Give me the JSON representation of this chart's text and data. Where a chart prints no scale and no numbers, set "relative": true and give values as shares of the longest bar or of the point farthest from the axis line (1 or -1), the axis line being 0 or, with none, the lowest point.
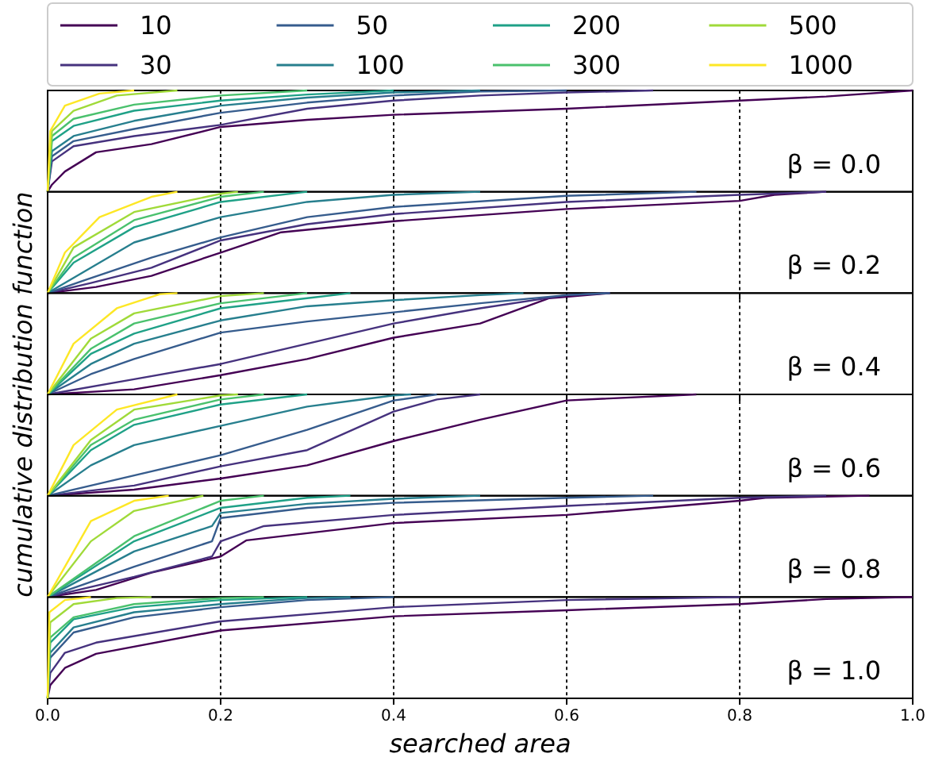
{
  "chart_data": [
    {
      "type": "line",
      "relative": true,
      "xlim": [
        0,
        1
      ],
      "xticks": [
        0,
        0.2,
        0.4,
        0.6,
        0.8,
        1
      ],
      "tick_labels": false,
      "grid": "x",
      "legend": "top",
      "annotations": [
        "β = 0.0"
      ],
      "series": [
        {
          "name": "10",
          "color": "#440154",
          "x": [
            0,
            0.005,
            0.02,
            0.056,
            0.12,
            0.2,
            0.3,
            0.4,
            0.6,
            0.8,
            0.9,
            1.0
          ],
          "values": [
            0,
            0.07,
            0.2,
            0.39,
            0.47,
            0.64,
            0.71,
            0.76,
            0.82,
            0.9,
            0.94,
            1.0
          ]
        },
        {
          "name": "30",
          "color": "#46327e",
          "x": [
            0,
            0.005,
            0.03,
            0.1,
            0.2,
            0.3,
            0.4,
            0.5,
            0.6,
            0.7
          ],
          "values": [
            0,
            0.3,
            0.45,
            0.55,
            0.66,
            0.82,
            0.9,
            0.95,
            0.98,
            1.0
          ]
        },
        {
          "name": "50",
          "color": "#365c8d",
          "x": [
            0,
            0.005,
            0.03,
            0.1,
            0.2,
            0.3,
            0.4,
            0.5,
            0.6
          ],
          "values": [
            0,
            0.35,
            0.5,
            0.62,
            0.78,
            0.88,
            0.95,
            0.99,
            1.0
          ]
        },
        {
          "name": "100",
          "color": "#277f8e",
          "x": [
            0,
            0.005,
            0.03,
            0.1,
            0.2,
            0.3,
            0.4,
            0.5
          ],
          "values": [
            0,
            0.4,
            0.55,
            0.7,
            0.85,
            0.93,
            0.98,
            1.0
          ]
        },
        {
          "name": "200",
          "color": "#1fa187",
          "x": [
            0,
            0.005,
            0.03,
            0.1,
            0.2,
            0.3,
            0.4
          ],
          "values": [
            0,
            0.5,
            0.65,
            0.8,
            0.9,
            0.96,
            1.0
          ]
        },
        {
          "name": "300",
          "color": "#4ac16d",
          "x": [
            0,
            0.005,
            0.03,
            0.1,
            0.2,
            0.3
          ],
          "values": [
            0,
            0.55,
            0.72,
            0.86,
            0.95,
            1.0
          ]
        },
        {
          "name": "500",
          "color": "#a0da39",
          "x": [
            0,
            0.005,
            0.03,
            0.08,
            0.15
          ],
          "values": [
            0,
            0.6,
            0.8,
            0.95,
            1.0
          ]
        },
        {
          "name": "1000",
          "color": "#fde725",
          "x": [
            0,
            0.003,
            0.02,
            0.06,
            0.1
          ],
          "values": [
            0,
            0.6,
            0.85,
            0.97,
            1.0
          ]
        }
      ]
    },
    {
      "type": "line",
      "relative": true,
      "xlim": [
        0,
        1
      ],
      "xticks": [
        0,
        0.2,
        0.4,
        0.6,
        0.8,
        1
      ],
      "tick_labels": false,
      "grid": "x",
      "annotations": [
        "β = 0.2"
      ],
      "series": [
        {
          "color": "#440154",
          "x": [
            0,
            0.056,
            0.12,
            0.2,
            0.27,
            0.4,
            0.6,
            0.8,
            0.84,
            0.9
          ],
          "values": [
            0,
            0.06,
            0.17,
            0.4,
            0.6,
            0.71,
            0.83,
            0.91,
            0.97,
            1.0
          ]
        },
        {
          "color": "#46327e",
          "x": [
            0,
            0.05,
            0.12,
            0.2,
            0.3,
            0.4,
            0.6,
            0.8,
            0.9
          ],
          "values": [
            0,
            0.1,
            0.25,
            0.52,
            0.68,
            0.78,
            0.9,
            0.97,
            1.0
          ]
        },
        {
          "color": "#365c8d",
          "x": [
            0,
            0.04,
            0.12,
            0.2,
            0.3,
            0.4,
            0.6,
            0.75
          ],
          "values": [
            0,
            0.12,
            0.35,
            0.55,
            0.75,
            0.85,
            0.96,
            1.0
          ]
        },
        {
          "color": "#277f8e",
          "x": [
            0,
            0.04,
            0.1,
            0.2,
            0.3,
            0.4,
            0.5
          ],
          "values": [
            0,
            0.2,
            0.5,
            0.75,
            0.9,
            0.97,
            1.0
          ]
        },
        {
          "color": "#1fa187",
          "x": [
            0,
            0.03,
            0.1,
            0.2,
            0.3
          ],
          "values": [
            0,
            0.3,
            0.65,
            0.9,
            1.0
          ]
        },
        {
          "color": "#4ac16d",
          "x": [
            0,
            0.03,
            0.1,
            0.2,
            0.25
          ],
          "values": [
            0,
            0.35,
            0.72,
            0.95,
            1.0
          ]
        },
        {
          "color": "#a0da39",
          "x": [
            0,
            0.03,
            0.1,
            0.2,
            0.22
          ],
          "values": [
            0,
            0.45,
            0.8,
            0.98,
            1.0
          ]
        },
        {
          "color": "#fde725",
          "x": [
            0,
            0.02,
            0.06,
            0.12,
            0.15
          ],
          "values": [
            0,
            0.4,
            0.75,
            0.95,
            1.0
          ]
        }
      ]
    },
    {
      "type": "line",
      "relative": true,
      "xlim": [
        0,
        1
      ],
      "xticks": [
        0,
        0.2,
        0.4,
        0.6,
        0.8,
        1
      ],
      "tick_labels": false,
      "grid": "x",
      "ylabel": "cumulative distribution function",
      "annotations": [
        "β = 0.4"
      ],
      "series": [
        {
          "color": "#440154",
          "x": [
            0,
            0.1,
            0.2,
            0.3,
            0.4,
            0.5,
            0.58,
            0.65
          ],
          "values": [
            0,
            0.05,
            0.19,
            0.35,
            0.56,
            0.7,
            0.95,
            1.0
          ]
        },
        {
          "color": "#46327e",
          "x": [
            0,
            0.1,
            0.2,
            0.3,
            0.4,
            0.5,
            0.6,
            0.65
          ],
          "values": [
            0,
            0.15,
            0.3,
            0.5,
            0.7,
            0.85,
            0.98,
            1.0
          ]
        },
        {
          "color": "#365c8d",
          "x": [
            0,
            0.05,
            0.1,
            0.2,
            0.3,
            0.4,
            0.5,
            0.6,
            0.65
          ],
          "values": [
            0,
            0.2,
            0.35,
            0.61,
            0.72,
            0.81,
            0.9,
            0.98,
            1.0
          ]
        },
        {
          "color": "#277f8e",
          "x": [
            0,
            0.05,
            0.1,
            0.2,
            0.3,
            0.4,
            0.5,
            0.55
          ],
          "values": [
            0,
            0.3,
            0.5,
            0.73,
            0.87,
            0.93,
            0.98,
            1.0
          ]
        },
        {
          "color": "#1fa187",
          "x": [
            0,
            0.05,
            0.1,
            0.2,
            0.3,
            0.35
          ],
          "values": [
            0,
            0.4,
            0.6,
            0.85,
            0.95,
            1.0
          ]
        },
        {
          "color": "#4ac16d",
          "x": [
            0,
            0.05,
            0.1,
            0.2,
            0.3
          ],
          "values": [
            0,
            0.45,
            0.7,
            0.9,
            1.0
          ]
        },
        {
          "color": "#a0da39",
          "x": [
            0,
            0.05,
            0.1,
            0.2,
            0.25
          ],
          "values": [
            0,
            0.55,
            0.8,
            0.97,
            1.0
          ]
        },
        {
          "color": "#fde725",
          "x": [
            0,
            0.03,
            0.08,
            0.13,
            0.15
          ],
          "values": [
            0,
            0.5,
            0.85,
            0.99,
            1.0
          ]
        }
      ]
    },
    {
      "type": "line",
      "relative": true,
      "xlim": [
        0,
        1
      ],
      "xticks": [
        0,
        0.2,
        0.4,
        0.6,
        0.8,
        1
      ],
      "tick_labels": false,
      "grid": "x",
      "annotations": [
        "β = 0.6"
      ],
      "series": [
        {
          "color": "#440154",
          "x": [
            0,
            0.1,
            0.2,
            0.3,
            0.4,
            0.5,
            0.6,
            0.75
          ],
          "values": [
            0,
            0.06,
            0.17,
            0.3,
            0.54,
            0.75,
            0.94,
            1.0
          ]
        },
        {
          "color": "#46327e",
          "x": [
            0,
            0.1,
            0.2,
            0.3,
            0.4,
            0.45,
            0.5
          ],
          "values": [
            0,
            0.1,
            0.29,
            0.45,
            0.83,
            0.95,
            1.0
          ]
        },
        {
          "color": "#365c8d",
          "x": [
            0,
            0.1,
            0.2,
            0.3,
            0.4,
            0.45
          ],
          "values": [
            0,
            0.2,
            0.4,
            0.65,
            0.94,
            1.0
          ]
        },
        {
          "color": "#277f8e",
          "x": [
            0,
            0.05,
            0.1,
            0.2,
            0.3,
            0.4,
            0.42
          ],
          "values": [
            0,
            0.3,
            0.5,
            0.69,
            0.88,
            0.99,
            1.0
          ]
        },
        {
          "color": "#1fa187",
          "x": [
            0,
            0.05,
            0.1,
            0.2,
            0.3
          ],
          "values": [
            0,
            0.45,
            0.7,
            0.9,
            1.0
          ]
        },
        {
          "color": "#4ac16d",
          "x": [
            0,
            0.05,
            0.1,
            0.2,
            0.25
          ],
          "values": [
            0,
            0.5,
            0.75,
            0.95,
            1.0
          ]
        },
        {
          "color": "#a0da39",
          "x": [
            0,
            0.05,
            0.1,
            0.2,
            0.22
          ],
          "values": [
            0,
            0.55,
            0.85,
            0.99,
            1.0
          ]
        },
        {
          "color": "#fde725",
          "x": [
            0,
            0.03,
            0.08,
            0.15
          ],
          "values": [
            0,
            0.5,
            0.85,
            1.0
          ]
        }
      ]
    },
    {
      "type": "line",
      "relative": true,
      "xlim": [
        0,
        1
      ],
      "xticks": [
        0,
        0.2,
        0.4,
        0.6,
        0.8,
        1
      ],
      "tick_labels": false,
      "grid": "x",
      "annotations": [
        "β = 0.8"
      ],
      "series": [
        {
          "color": "#440154",
          "x": [
            0,
            0.056,
            0.12,
            0.2,
            0.23,
            0.4,
            0.6,
            0.8,
            0.83,
            0.95
          ],
          "values": [
            0,
            0.07,
            0.24,
            0.4,
            0.56,
            0.73,
            0.81,
            0.95,
            0.98,
            1.0
          ]
        },
        {
          "color": "#46327e",
          "x": [
            0,
            0.1,
            0.19,
            0.2,
            0.25,
            0.4,
            0.6,
            0.8,
            0.9
          ],
          "values": [
            0,
            0.2,
            0.4,
            0.55,
            0.7,
            0.81,
            0.9,
            0.98,
            1.0
          ]
        },
        {
          "color": "#365c8d",
          "x": [
            0,
            0.1,
            0.19,
            0.2,
            0.3,
            0.4,
            0.6,
            0.7
          ],
          "values": [
            0,
            0.3,
            0.55,
            0.78,
            0.88,
            0.93,
            0.98,
            1.0
          ]
        },
        {
          "color": "#277f8e",
          "x": [
            0,
            0.1,
            0.19,
            0.2,
            0.3,
            0.4,
            0.5
          ],
          "values": [
            0,
            0.45,
            0.7,
            0.83,
            0.92,
            0.97,
            1.0
          ]
        },
        {
          "color": "#1fa187",
          "x": [
            0,
            0.1,
            0.2,
            0.3,
            0.35
          ],
          "values": [
            0,
            0.55,
            0.88,
            0.98,
            1.0
          ]
        },
        {
          "color": "#4ac16d",
          "x": [
            0,
            0.1,
            0.2,
            0.25
          ],
          "values": [
            0,
            0.6,
            0.95,
            1.0
          ]
        },
        {
          "color": "#a0da39",
          "x": [
            0,
            0.05,
            0.1,
            0.18
          ],
          "values": [
            0,
            0.55,
            0.85,
            1.0
          ]
        },
        {
          "color": "#fde725",
          "x": [
            0,
            0.05,
            0.1,
            0.14
          ],
          "values": [
            0,
            0.75,
            0.95,
            1.0
          ]
        }
      ]
    },
    {
      "type": "line",
      "relative": true,
      "xlim": [
        0,
        1
      ],
      "xticks": [
        {
          "value": 0,
          "label": "0.0"
        },
        0.2,
        0.4,
        0.6,
        0.8,
        {
          "value": 1,
          "label": "1.0"
        }
      ],
      "tick_labels": "x",
      "grid": "x",
      "xlabel": "searched area",
      "annotations": [
        "β = 1.0"
      ],
      "series": [
        {
          "color": "#440154",
          "x": [
            0,
            0.003,
            0.02,
            0.056,
            0.2,
            0.4,
            0.6,
            0.8,
            0.9,
            1.0
          ],
          "values": [
            0,
            0.13,
            0.3,
            0.44,
            0.67,
            0.81,
            0.87,
            0.93,
            0.98,
            1.0
          ]
        },
        {
          "color": "#46327e",
          "x": [
            0,
            0.003,
            0.02,
            0.056,
            0.2,
            0.4,
            0.6,
            0.8
          ],
          "values": [
            0,
            0.25,
            0.45,
            0.55,
            0.76,
            0.9,
            0.97,
            1.0
          ]
        },
        {
          "color": "#365c8d",
          "x": [
            0,
            0.003,
            0.03,
            0.1,
            0.2,
            0.3,
            0.4
          ],
          "values": [
            0,
            0.4,
            0.65,
            0.8,
            0.9,
            0.97,
            1.0
          ]
        },
        {
          "color": "#277f8e",
          "x": [
            0,
            0.003,
            0.03,
            0.1,
            0.2,
            0.3,
            0.35
          ],
          "values": [
            0,
            0.45,
            0.7,
            0.85,
            0.93,
            0.99,
            1.0
          ]
        },
        {
          "color": "#1fa187",
          "x": [
            0,
            0.003,
            0.03,
            0.1,
            0.2,
            0.3
          ],
          "values": [
            0,
            0.55,
            0.78,
            0.9,
            0.97,
            1.0
          ]
        },
        {
          "color": "#4ac16d",
          "x": [
            0,
            0.003,
            0.03,
            0.1,
            0.2,
            0.25
          ],
          "values": [
            0,
            0.6,
            0.8,
            0.93,
            0.99,
            1.0
          ]
        },
        {
          "color": "#a0da39",
          "x": [
            0,
            0.003,
            0.03,
            0.08,
            0.12
          ],
          "values": [
            0,
            0.75,
            0.93,
            0.99,
            1.0
          ]
        },
        {
          "color": "#fde725",
          "x": [
            0,
            0.002,
            0.02,
            0.05
          ],
          "values": [
            0,
            0.85,
            0.97,
            1.0
          ]
        }
      ]
    }
  ]
}
